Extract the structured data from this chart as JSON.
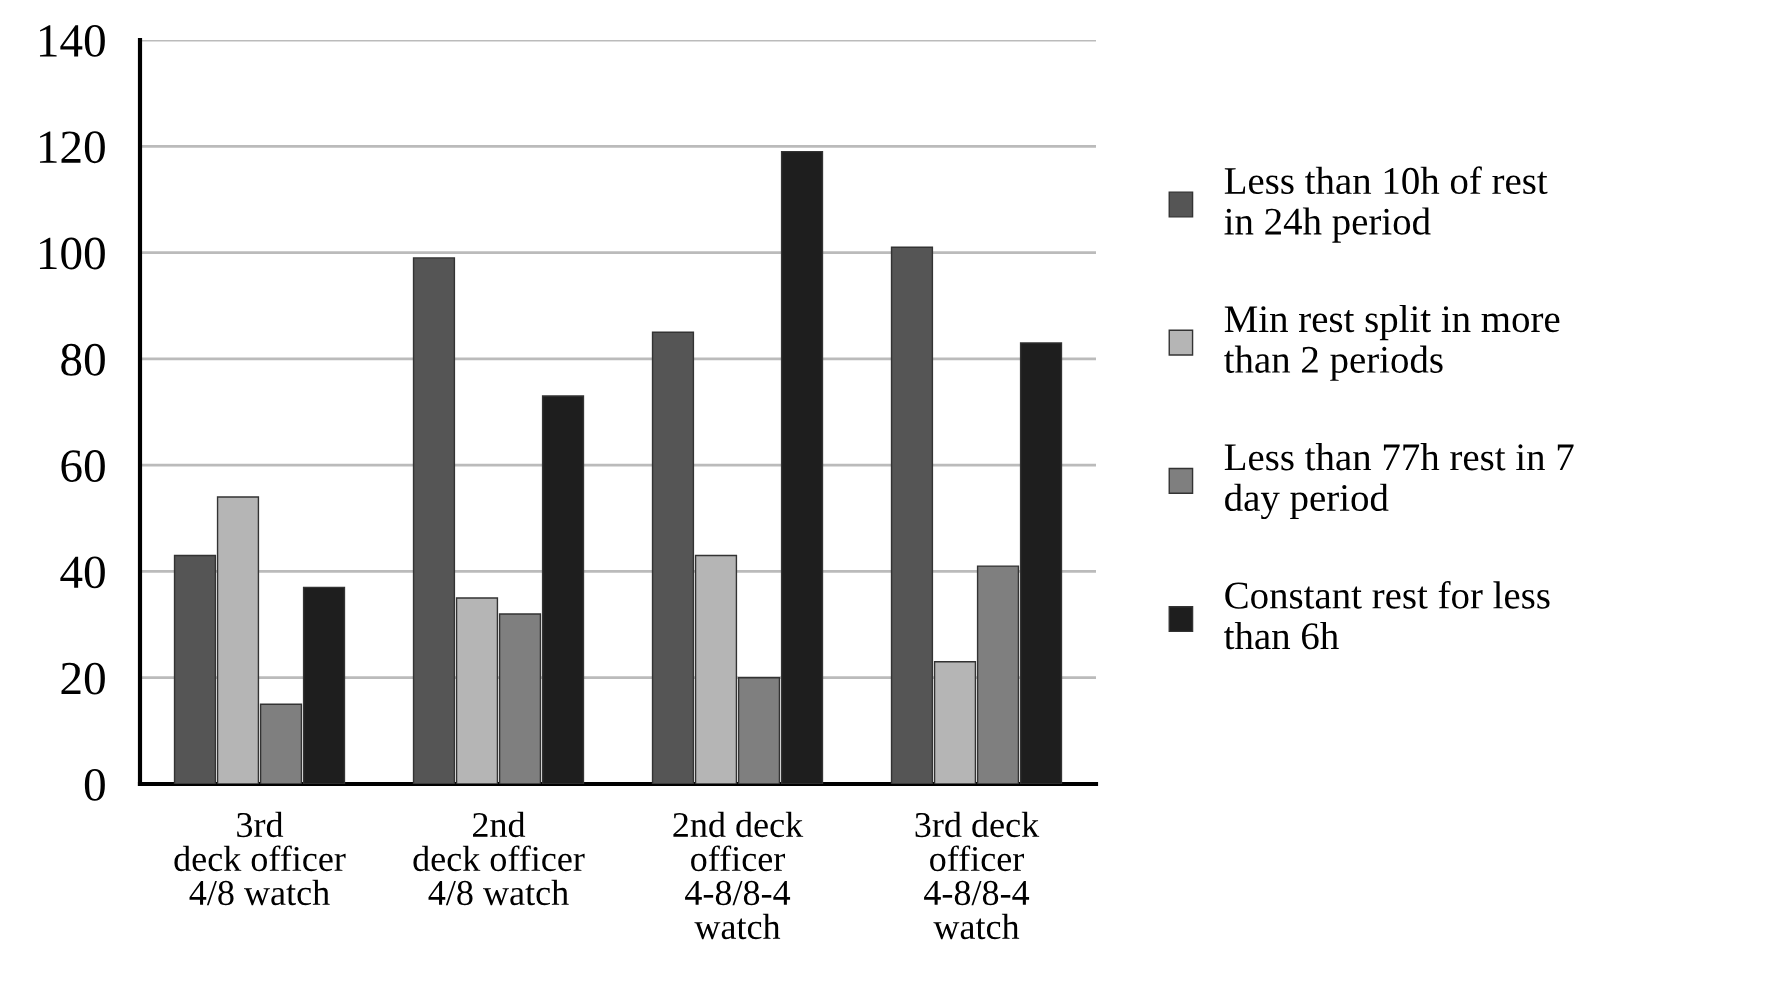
{
  "chart_data": {
    "type": "bar",
    "categories": [
      "3rd\ndeck officer\n4/8 watch",
      "2nd\ndeck officer\n4/8 watch",
      "2nd deck\nofficer\n4-8/8-4\nwatch",
      "3rd deck\nofficer\n4-8/8-4\nwatch"
    ],
    "series": [
      {
        "name": "Less than 10h of rest\nin 24h period",
        "color": "#555555",
        "values": [
          43,
          99,
          85,
          101
        ]
      },
      {
        "name": "Min rest split in more\nthan 2 periods",
        "color": "#b5b5b5",
        "values": [
          54,
          35,
          43,
          23
        ]
      },
      {
        "name": "Less than 77h rest in 7\nday period",
        "color": "#7f7f7f",
        "values": [
          15,
          32,
          20,
          41
        ]
      },
      {
        "name": "Constant rest for less\nthan 6h",
        "color": "#1e1e1e",
        "values": [
          37,
          73,
          119,
          83
        ]
      }
    ],
    "ylim": [
      0,
      140
    ],
    "yticks": [
      0,
      20,
      40,
      60,
      80,
      100,
      120,
      140
    ],
    "grid": "y",
    "legend": "right"
  }
}
